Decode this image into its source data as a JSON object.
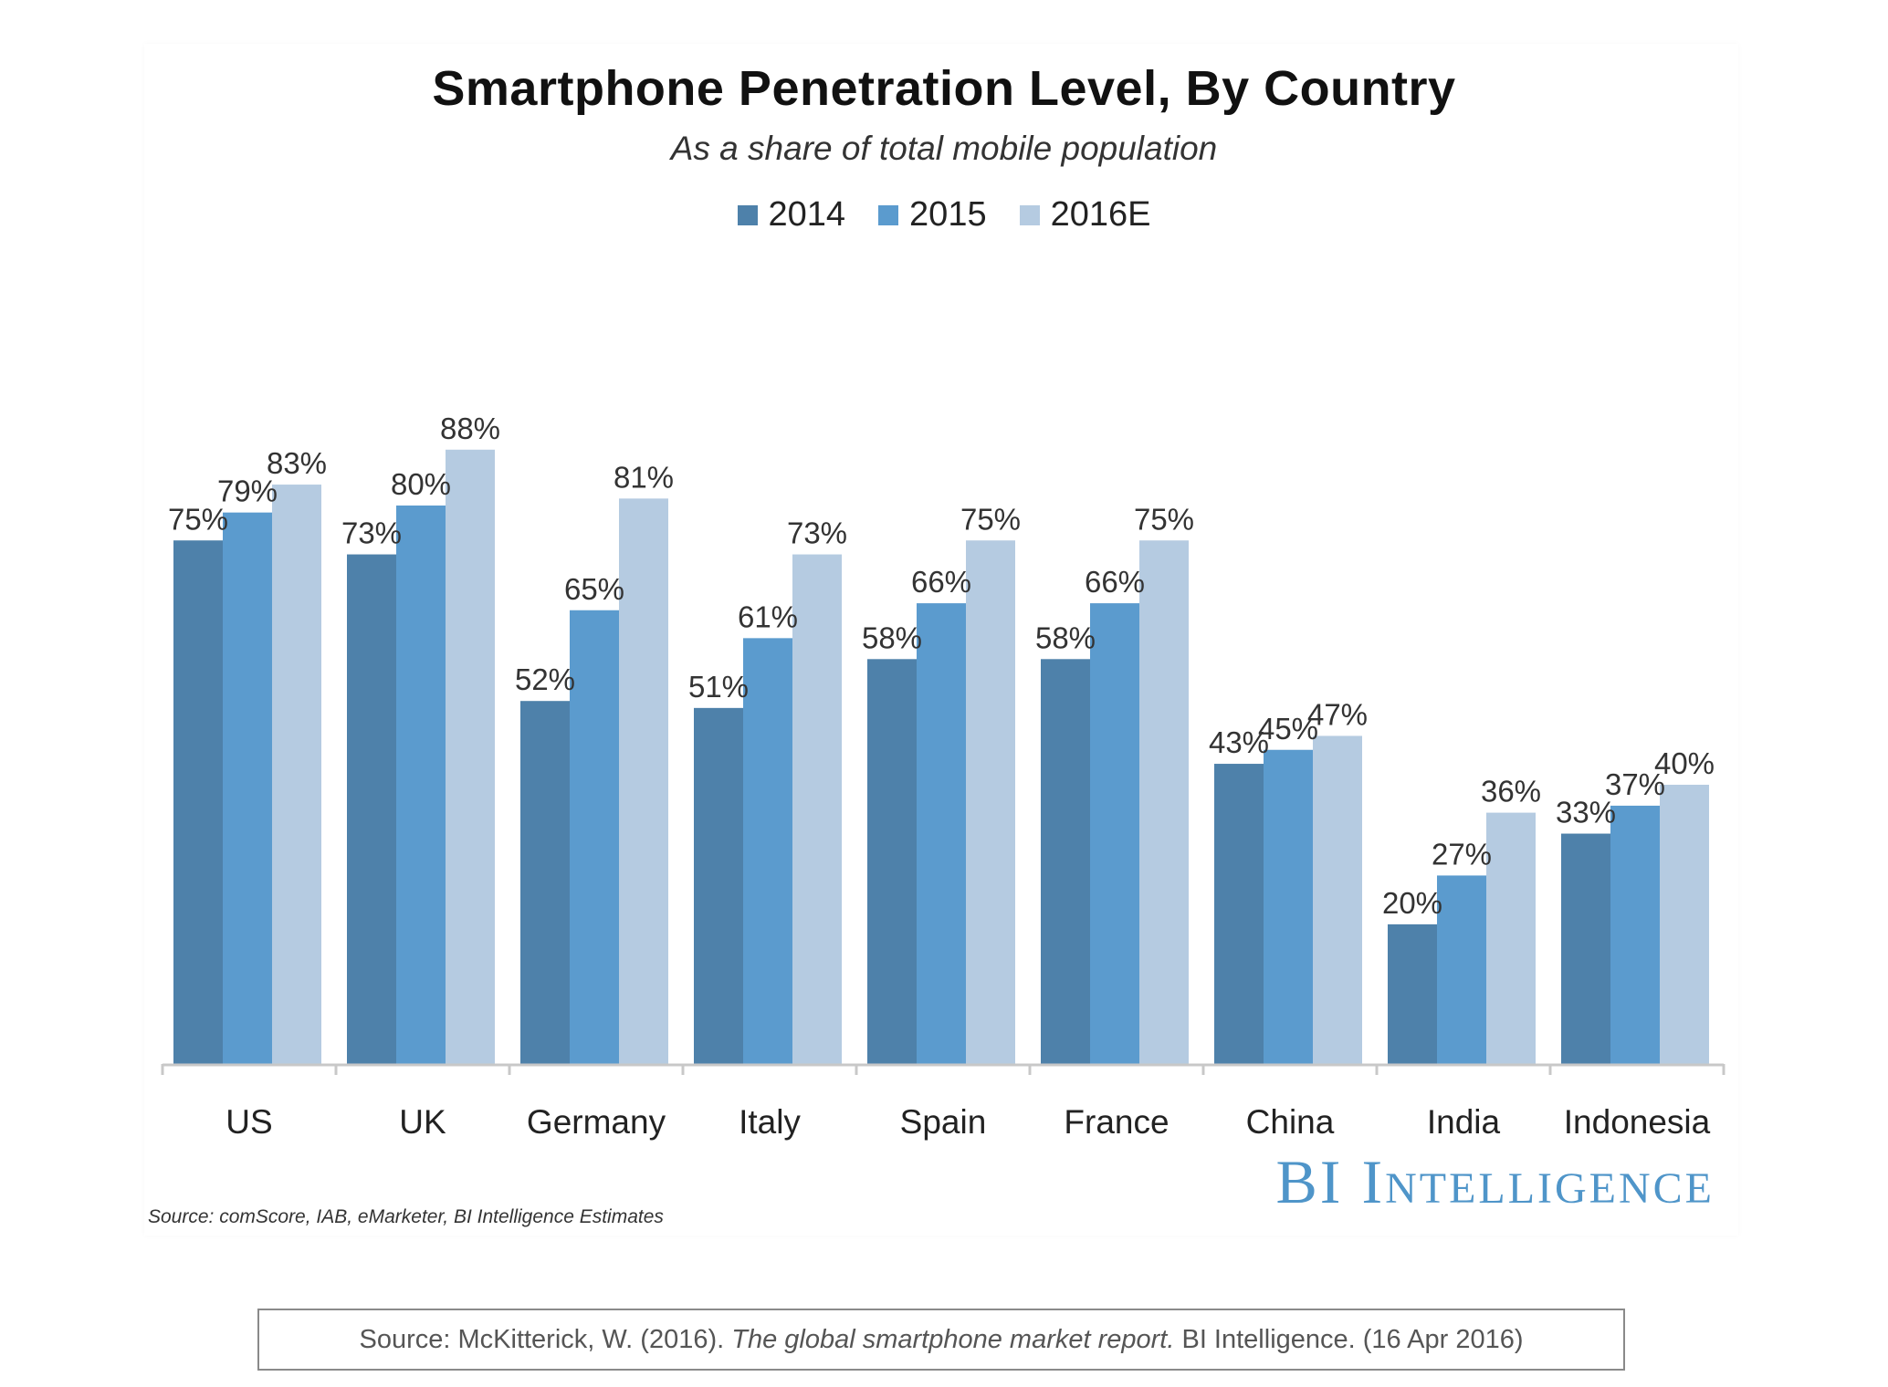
{
  "chart_data": {
    "type": "bar",
    "title": "Smartphone Penetration Level, By Country",
    "subtitle": "As a share of total mobile population",
    "categories": [
      "US",
      "UK",
      "Germany",
      "Italy",
      "Spain",
      "France",
      "China",
      "India",
      "Indonesia"
    ],
    "series": [
      {
        "name": "2014",
        "color": "#4e81aa",
        "values": [
          75,
          73,
          52,
          51,
          58,
          58,
          43,
          20,
          33
        ]
      },
      {
        "name": "2015",
        "color": "#5b9bce",
        "values": [
          79,
          80,
          65,
          61,
          66,
          66,
          45,
          27,
          37
        ]
      },
      {
        "name": "2016E",
        "color": "#b5cbe1",
        "values": [
          83,
          88,
          81,
          73,
          75,
          75,
          47,
          36,
          40
        ]
      }
    ],
    "value_suffix": "%",
    "ylim": [
      0,
      100
    ],
    "xlabel": "",
    "ylabel": "",
    "grid": false,
    "legend_position": "top-center"
  },
  "brand": "BI Intelligence",
  "chart_source": "Source: comScore, IAB, eMarketer, BI Intelligence Estimates",
  "citation": {
    "prefix": "Source: McKitterick, W. (2016). ",
    "title": "The global smartphone market report.",
    "suffix": " BI Intelligence. (16 Apr 2016)"
  }
}
